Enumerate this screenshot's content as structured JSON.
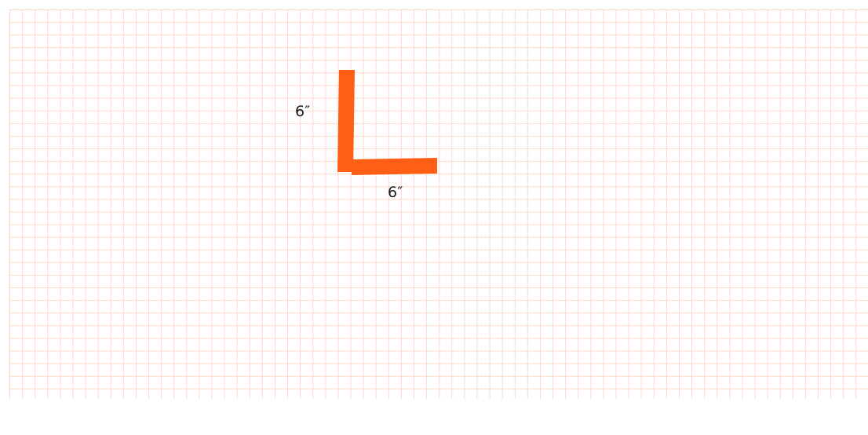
{
  "diagram": {
    "shape": "L-shaped bracket",
    "stroke_color": "#ff5f15",
    "grid_color": "#ffd8c8",
    "vertical_segment_label": "6″",
    "horizontal_segment_label": "6″"
  }
}
